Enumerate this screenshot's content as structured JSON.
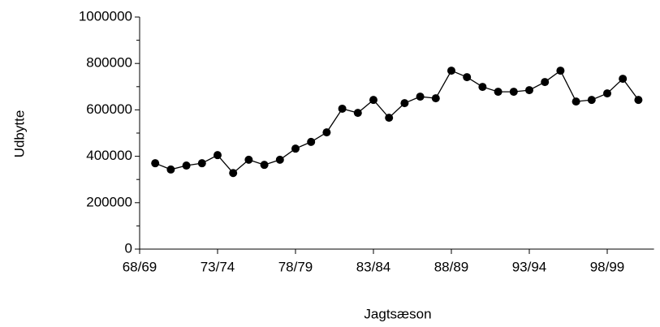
{
  "chart_data": {
    "type": "line",
    "xlabel": "Jagtsæson",
    "ylabel": "Udbytte",
    "categories": [
      "68/69",
      null,
      null,
      null,
      null,
      "73/74",
      null,
      null,
      null,
      null,
      "78/79",
      null,
      null,
      null,
      null,
      "83/84",
      null,
      null,
      null,
      null,
      "88/89",
      null,
      null,
      null,
      null,
      "93/94",
      null,
      null,
      null,
      null,
      "98/99",
      null,
      null,
      null
    ],
    "values": [
      null,
      370000,
      343000,
      360000,
      370000,
      405000,
      328000,
      385000,
      363000,
      385000,
      433000,
      462000,
      503000,
      605000,
      587000,
      643000,
      566000,
      629000,
      657000,
      650000,
      769000,
      741000,
      699000,
      678000,
      678000,
      685000,
      720000,
      769000,
      636000,
      643000,
      671000,
      734000,
      643000,
      null
    ],
    "color": "#000000",
    "ylim": [
      0,
      1000000
    ],
    "yticks": [
      0,
      200000,
      400000,
      600000,
      800000,
      1000000
    ],
    "yticks_minor": [
      100000,
      300000,
      500000,
      700000,
      900000
    ]
  }
}
